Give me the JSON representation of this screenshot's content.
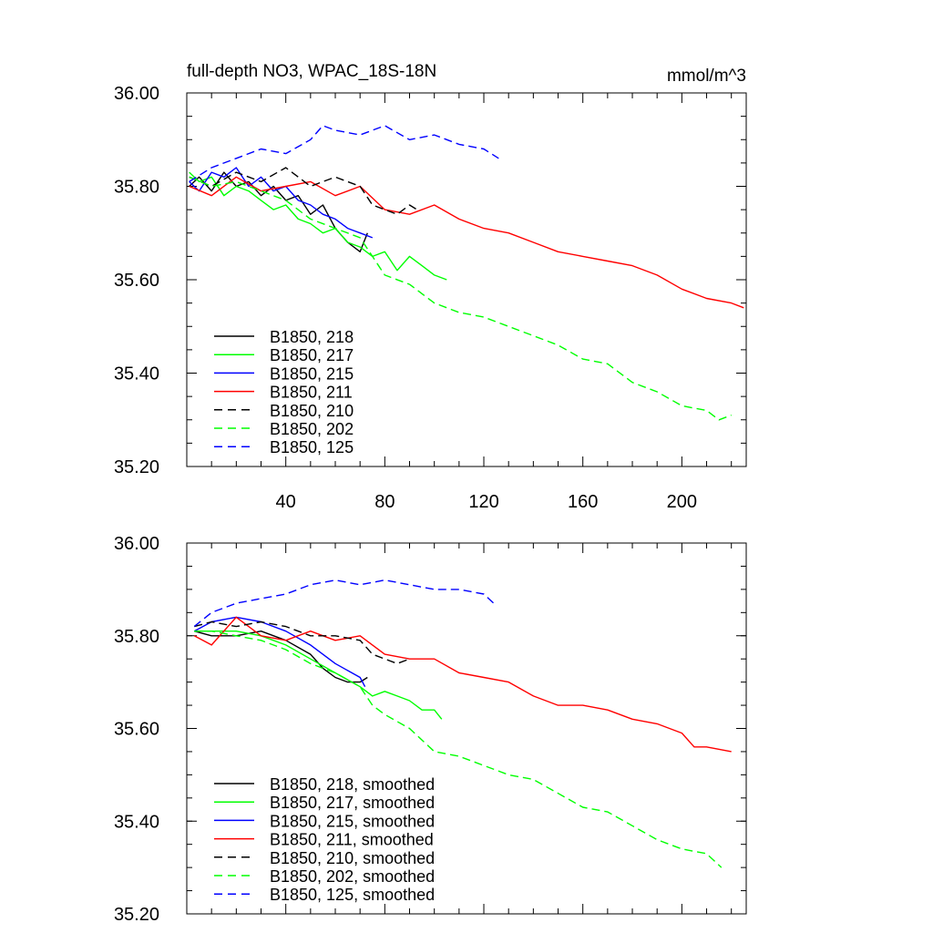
{
  "chart_data": [
    {
      "type": "line",
      "title": "full-depth NO3, WPAC_18S-18N",
      "units": "mmol/m^3",
      "xlim": [
        0,
        226
      ],
      "ylim": [
        35.2,
        36.0
      ],
      "yticks": [
        "35.20",
        "35.40",
        "35.60",
        "35.80",
        "36.00"
      ],
      "xticks": [
        "40",
        "80",
        "120",
        "160",
        "200"
      ],
      "series": [
        {
          "name": "B1850, 218",
          "color": "#000000",
          "dash": "solid",
          "x": [
            1,
            5,
            10,
            15,
            20,
            25,
            30,
            35,
            40,
            45,
            50,
            55,
            60,
            65,
            70,
            73
          ],
          "y": [
            35.8,
            35.82,
            35.79,
            35.83,
            35.8,
            35.81,
            35.78,
            35.8,
            35.77,
            35.78,
            35.74,
            35.76,
            35.71,
            35.68,
            35.66,
            35.7
          ]
        },
        {
          "name": "B1850, 217",
          "color": "#00ff00",
          "dash": "solid",
          "x": [
            1,
            5,
            10,
            15,
            20,
            25,
            30,
            35,
            40,
            45,
            50,
            55,
            60,
            65,
            70,
            75,
            80,
            85,
            90,
            95,
            100,
            105
          ],
          "y": [
            35.83,
            35.81,
            35.82,
            35.78,
            35.8,
            35.79,
            35.77,
            35.75,
            35.76,
            35.73,
            35.72,
            35.7,
            35.71,
            35.68,
            35.67,
            35.65,
            35.66,
            35.62,
            35.65,
            35.63,
            35.61,
            35.6
          ]
        },
        {
          "name": "B1850, 215",
          "color": "#0000ff",
          "dash": "solid",
          "x": [
            1,
            5,
            10,
            15,
            20,
            25,
            30,
            35,
            40,
            45,
            50,
            55,
            60,
            65,
            70,
            75
          ],
          "y": [
            35.81,
            35.79,
            35.83,
            35.82,
            35.84,
            35.8,
            35.82,
            35.79,
            35.8,
            35.77,
            35.76,
            35.74,
            35.73,
            35.71,
            35.7,
            35.69
          ]
        },
        {
          "name": "B1850, 211",
          "color": "#ff0000",
          "dash": "solid",
          "x": [
            1,
            10,
            20,
            30,
            40,
            50,
            60,
            70,
            80,
            90,
            100,
            110,
            120,
            130,
            140,
            150,
            160,
            170,
            180,
            190,
            200,
            210,
            220,
            225
          ],
          "y": [
            35.8,
            35.78,
            35.82,
            35.79,
            35.8,
            35.81,
            35.78,
            35.8,
            35.75,
            35.74,
            35.76,
            35.73,
            35.71,
            35.7,
            35.68,
            35.66,
            35.65,
            35.64,
            35.63,
            35.61,
            35.58,
            35.56,
            35.55,
            35.54
          ]
        },
        {
          "name": "B1850, 210",
          "color": "#000000",
          "dash": "dashed",
          "x": [
            1,
            10,
            20,
            30,
            40,
            50,
            60,
            70,
            75,
            80,
            85,
            90,
            93
          ],
          "y": [
            35.82,
            35.8,
            35.83,
            35.81,
            35.84,
            35.8,
            35.82,
            35.8,
            35.76,
            35.75,
            35.74,
            35.76,
            35.75
          ]
        },
        {
          "name": "B1850, 202",
          "color": "#00ff00",
          "dash": "dashed",
          "x": [
            1,
            10,
            20,
            30,
            40,
            50,
            60,
            70,
            75,
            80,
            90,
            100,
            110,
            120,
            130,
            140,
            150,
            160,
            170,
            180,
            190,
            200,
            210,
            215,
            220
          ],
          "y": [
            35.82,
            35.8,
            35.81,
            35.79,
            35.77,
            35.73,
            35.71,
            35.69,
            35.65,
            35.61,
            35.59,
            35.55,
            35.53,
            35.52,
            35.5,
            35.48,
            35.46,
            35.43,
            35.42,
            35.38,
            35.36,
            35.33,
            35.32,
            35.3,
            35.31
          ]
        },
        {
          "name": "B1850, 125",
          "color": "#0000ff",
          "dash": "dashed",
          "x": [
            1,
            10,
            20,
            30,
            40,
            50,
            55,
            60,
            70,
            80,
            90,
            100,
            110,
            120,
            126
          ],
          "y": [
            35.81,
            35.84,
            35.86,
            35.88,
            35.87,
            35.9,
            35.93,
            35.92,
            35.91,
            35.93,
            35.9,
            35.91,
            35.89,
            35.88,
            35.86
          ]
        }
      ]
    },
    {
      "type": "line",
      "xlim": [
        0,
        226
      ],
      "ylim": [
        35.2,
        36.0
      ],
      "yticks": [
        "35.20",
        "35.40",
        "35.60",
        "35.80",
        "36.00"
      ],
      "series": [
        {
          "name": "B1850, 218, smoothed",
          "color": "#000000",
          "dash": "solid",
          "x": [
            3,
            10,
            20,
            30,
            40,
            50,
            55,
            60,
            65,
            70,
            73
          ],
          "y": [
            35.81,
            35.8,
            35.8,
            35.81,
            35.79,
            35.76,
            35.73,
            35.71,
            35.7,
            35.7,
            35.71
          ]
        },
        {
          "name": "B1850, 217, smoothed",
          "color": "#00ff00",
          "dash": "solid",
          "x": [
            3,
            10,
            20,
            30,
            40,
            50,
            60,
            70,
            75,
            80,
            85,
            90,
            95,
            100,
            103
          ],
          "y": [
            35.81,
            35.81,
            35.81,
            35.8,
            35.78,
            35.75,
            35.72,
            35.69,
            35.67,
            35.68,
            35.67,
            35.66,
            35.64,
            35.64,
            35.62
          ]
        },
        {
          "name": "B1850, 215, smoothed",
          "color": "#0000ff",
          "dash": "solid",
          "x": [
            3,
            10,
            20,
            30,
            40,
            50,
            60,
            70,
            72
          ],
          "y": [
            35.81,
            35.83,
            35.84,
            35.83,
            35.81,
            35.78,
            35.74,
            35.71,
            35.69
          ]
        },
        {
          "name": "B1850, 211, smoothed",
          "color": "#ff0000",
          "dash": "solid",
          "x": [
            3,
            10,
            20,
            30,
            40,
            50,
            60,
            70,
            80,
            90,
            100,
            110,
            120,
            130,
            140,
            150,
            160,
            170,
            180,
            190,
            200,
            205,
            210,
            220
          ],
          "y": [
            35.8,
            35.78,
            35.84,
            35.8,
            35.79,
            35.81,
            35.79,
            35.8,
            35.76,
            35.75,
            35.75,
            35.72,
            35.71,
            35.7,
            35.67,
            35.65,
            35.65,
            35.64,
            35.62,
            35.61,
            35.59,
            35.56,
            35.56,
            35.55
          ]
        },
        {
          "name": "B1850, 210, smoothed",
          "color": "#000000",
          "dash": "dashed",
          "x": [
            3,
            10,
            20,
            30,
            40,
            50,
            60,
            70,
            75,
            80,
            85,
            90
          ],
          "y": [
            35.82,
            35.83,
            35.82,
            35.83,
            35.82,
            35.8,
            35.8,
            35.79,
            35.76,
            35.75,
            35.74,
            35.75
          ]
        },
        {
          "name": "B1850, 202, smoothed",
          "color": "#00ff00",
          "dash": "dashed",
          "x": [
            3,
            10,
            20,
            30,
            40,
            50,
            60,
            70,
            75,
            80,
            90,
            100,
            110,
            120,
            130,
            140,
            150,
            160,
            170,
            180,
            190,
            200,
            210,
            216
          ],
          "y": [
            35.81,
            35.81,
            35.8,
            35.79,
            35.77,
            35.74,
            35.72,
            35.69,
            35.65,
            35.63,
            35.6,
            35.55,
            35.54,
            35.52,
            35.5,
            35.49,
            35.46,
            35.43,
            35.42,
            35.39,
            35.36,
            35.34,
            35.33,
            35.3
          ]
        },
        {
          "name": "B1850, 125, smoothed",
          "color": "#0000ff",
          "dash": "dashed",
          "x": [
            3,
            10,
            20,
            30,
            40,
            50,
            60,
            70,
            80,
            90,
            100,
            110,
            120,
            124
          ],
          "y": [
            35.82,
            35.85,
            35.87,
            35.88,
            35.89,
            35.91,
            35.92,
            35.91,
            35.92,
            35.91,
            35.9,
            35.9,
            35.89,
            35.87
          ]
        }
      ]
    }
  ]
}
